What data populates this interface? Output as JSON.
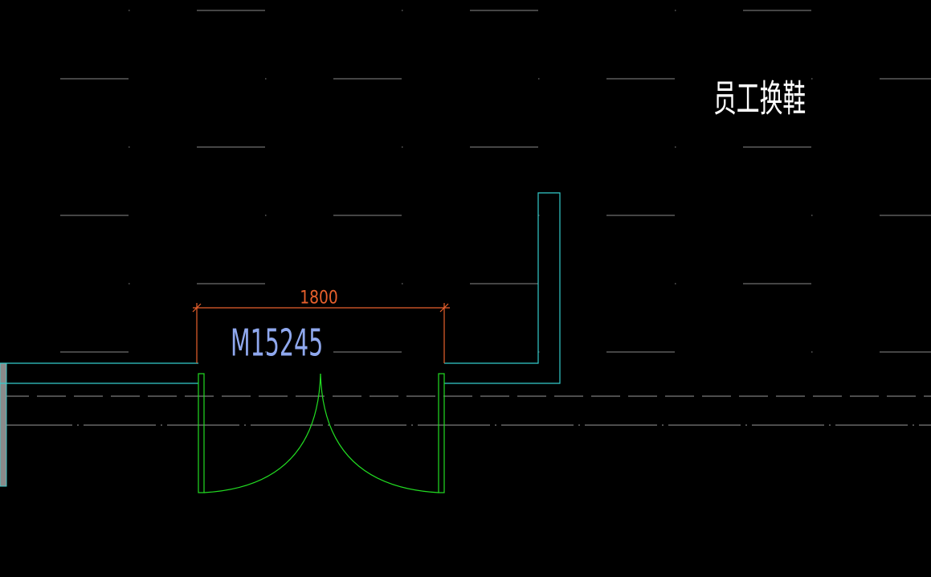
{
  "room_label": "员工换鞋",
  "door": {
    "label": "M15245",
    "dimension": 1800
  }
}
